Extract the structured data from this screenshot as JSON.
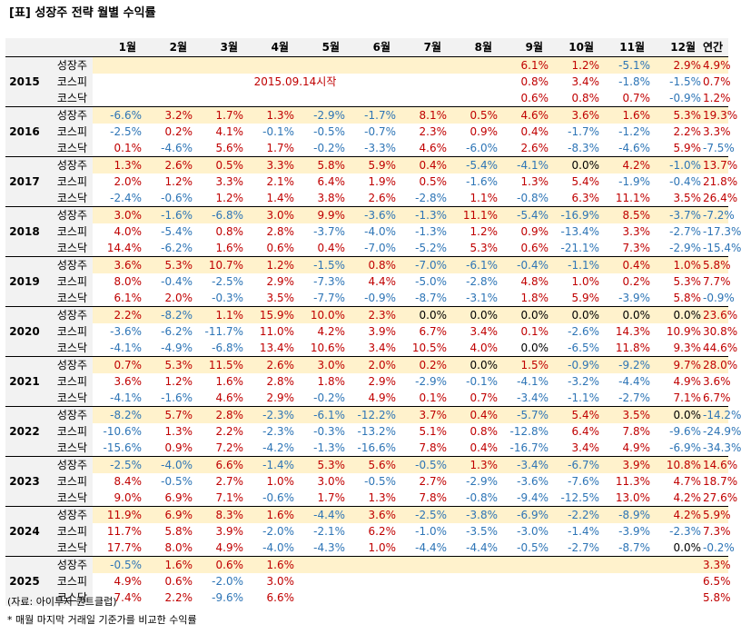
{
  "title": "[표] 성장주 전략 월별 수익률",
  "columns": [
    "1월",
    "2월",
    "3월",
    "4월",
    "5월",
    "6월",
    "7월",
    "8월",
    "9월",
    "10월",
    "11월",
    "12월",
    "연간"
  ],
  "note_2015": "2015.09.14시작",
  "colors": {
    "positive": "#c00000",
    "negative": "#2e75b6",
    "highlight": "#fff2cc",
    "header": "#f2f2f2"
  },
  "years": [
    {
      "year": "2015",
      "rows": [
        {
          "label": "성장주",
          "values": [
            "",
            "",
            "",
            "",
            "",
            "",
            "",
            "",
            "6.1%",
            "1.2%",
            "-5.1%",
            "2.9%",
            "4.9%"
          ]
        },
        {
          "label": "코스피",
          "values": [
            "",
            "",
            "",
            "",
            "",
            "",
            "",
            "",
            "0.8%",
            "3.4%",
            "-1.8%",
            "-1.5%",
            "0.7%"
          ]
        },
        {
          "label": "코스닥",
          "values": [
            "",
            "",
            "",
            "",
            "",
            "",
            "",
            "",
            "0.6%",
            "0.8%",
            "0.7%",
            "-0.9%",
            "1.2%"
          ]
        }
      ]
    },
    {
      "year": "2016",
      "rows": [
        {
          "label": "성장주",
          "values": [
            "-6.6%",
            "3.2%",
            "1.7%",
            "1.3%",
            "-2.9%",
            "-1.7%",
            "8.1%",
            "0.5%",
            "4.6%",
            "3.6%",
            "1.6%",
            "5.3%",
            "19.3%"
          ]
        },
        {
          "label": "코스피",
          "values": [
            "-2.5%",
            "0.2%",
            "4.1%",
            "-0.1%",
            "-0.5%",
            "-0.7%",
            "2.3%",
            "0.9%",
            "0.4%",
            "-1.7%",
            "-1.2%",
            "2.2%",
            "3.3%"
          ]
        },
        {
          "label": "코스닥",
          "values": [
            "0.1%",
            "-4.6%",
            "5.6%",
            "1.7%",
            "-0.2%",
            "-3.3%",
            "4.6%",
            "-6.0%",
            "2.6%",
            "-8.3%",
            "-4.6%",
            "5.9%",
            "-7.5%"
          ]
        }
      ]
    },
    {
      "year": "2017",
      "rows": [
        {
          "label": "성장주",
          "values": [
            "1.3%",
            "2.6%",
            "0.5%",
            "3.3%",
            "5.8%",
            "5.9%",
            "0.4%",
            "-5.4%",
            "-4.1%",
            "0.0%",
            "4.2%",
            "-1.0%",
            "13.7%"
          ]
        },
        {
          "label": "코스피",
          "values": [
            "2.0%",
            "1.2%",
            "3.3%",
            "2.1%",
            "6.4%",
            "1.9%",
            "0.5%",
            "-1.6%",
            "1.3%",
            "5.4%",
            "-1.9%",
            "-0.4%",
            "21.8%"
          ]
        },
        {
          "label": "코스닥",
          "values": [
            "-2.4%",
            "-0.6%",
            "1.2%",
            "1.4%",
            "3.8%",
            "2.6%",
            "-2.8%",
            "1.1%",
            "-0.8%",
            "6.3%",
            "11.1%",
            "3.5%",
            "26.4%"
          ]
        }
      ]
    },
    {
      "year": "2018",
      "rows": [
        {
          "label": "성장주",
          "values": [
            "3.0%",
            "-1.6%",
            "-6.8%",
            "3.0%",
            "9.9%",
            "-3.6%",
            "-1.3%",
            "11.1%",
            "-5.4%",
            "-16.9%",
            "8.5%",
            "-3.7%",
            "-7.2%"
          ]
        },
        {
          "label": "코스피",
          "values": [
            "4.0%",
            "-5.4%",
            "0.8%",
            "2.8%",
            "-3.7%",
            "-4.0%",
            "-1.3%",
            "1.2%",
            "0.9%",
            "-13.4%",
            "3.3%",
            "-2.7%",
            "-17.3%"
          ]
        },
        {
          "label": "코스닥",
          "values": [
            "14.4%",
            "-6.2%",
            "1.6%",
            "0.6%",
            "0.4%",
            "-7.0%",
            "-5.2%",
            "5.3%",
            "0.6%",
            "-21.1%",
            "7.3%",
            "-2.9%",
            "-15.4%"
          ]
        }
      ]
    },
    {
      "year": "2019",
      "rows": [
        {
          "label": "성장주",
          "values": [
            "3.6%",
            "5.3%",
            "10.7%",
            "1.2%",
            "-1.5%",
            "0.8%",
            "-7.0%",
            "-6.1%",
            "-0.4%",
            "-1.1%",
            "0.4%",
            "1.0%",
            "5.8%"
          ]
        },
        {
          "label": "코스피",
          "values": [
            "8.0%",
            "-0.4%",
            "-2.5%",
            "2.9%",
            "-7.3%",
            "4.4%",
            "-5.0%",
            "-2.8%",
            "4.8%",
            "1.0%",
            "0.2%",
            "5.3%",
            "7.7%"
          ]
        },
        {
          "label": "코스닥",
          "values": [
            "6.1%",
            "2.0%",
            "-0.3%",
            "3.5%",
            "-7.7%",
            "-0.9%",
            "-8.7%",
            "-3.1%",
            "1.8%",
            "5.9%",
            "-3.9%",
            "5.8%",
            "-0.9%"
          ]
        }
      ]
    },
    {
      "year": "2020",
      "rows": [
        {
          "label": "성장주",
          "values": [
            "2.2%",
            "-8.2%",
            "1.1%",
            "15.9%",
            "10.0%",
            "2.3%",
            "0.0%",
            "0.0%",
            "0.0%",
            "0.0%",
            "0.0%",
            "0.0%",
            "23.6%"
          ]
        },
        {
          "label": "코스피",
          "values": [
            "-3.6%",
            "-6.2%",
            "-11.7%",
            "11.0%",
            "4.2%",
            "3.9%",
            "6.7%",
            "3.4%",
            "0.1%",
            "-2.6%",
            "14.3%",
            "10.9%",
            "30.8%"
          ]
        },
        {
          "label": "코스닥",
          "values": [
            "-4.1%",
            "-4.9%",
            "-6.8%",
            "13.4%",
            "10.6%",
            "3.4%",
            "10.5%",
            "4.0%",
            "0.0%",
            "-6.5%",
            "11.8%",
            "9.3%",
            "44.6%"
          ]
        }
      ]
    },
    {
      "year": "2021",
      "rows": [
        {
          "label": "성장주",
          "values": [
            "0.7%",
            "5.3%",
            "11.5%",
            "2.6%",
            "3.0%",
            "2.0%",
            "0.2%",
            "0.0%",
            "1.5%",
            "-0.9%",
            "-9.2%",
            "9.7%",
            "28.0%"
          ]
        },
        {
          "label": "코스피",
          "values": [
            "3.6%",
            "1.2%",
            "1.6%",
            "2.8%",
            "1.8%",
            "2.9%",
            "-2.9%",
            "-0.1%",
            "-4.1%",
            "-3.2%",
            "-4.4%",
            "4.9%",
            "3.6%"
          ]
        },
        {
          "label": "코스닥",
          "values": [
            "-4.1%",
            "-1.6%",
            "4.6%",
            "2.9%",
            "-0.2%",
            "4.9%",
            "0.1%",
            "0.7%",
            "-3.4%",
            "-1.1%",
            "-2.7%",
            "7.1%",
            "6.7%"
          ]
        }
      ]
    },
    {
      "year": "2022",
      "rows": [
        {
          "label": "성장주",
          "values": [
            "-8.2%",
            "5.7%",
            "2.8%",
            "-2.3%",
            "-6.1%",
            "-12.2%",
            "3.7%",
            "0.4%",
            "-5.7%",
            "5.4%",
            "3.5%",
            "0.0%",
            "-14.2%"
          ]
        },
        {
          "label": "코스피",
          "values": [
            "-10.6%",
            "1.3%",
            "2.2%",
            "-2.3%",
            "-0.3%",
            "-13.2%",
            "5.1%",
            "0.8%",
            "-12.8%",
            "6.4%",
            "7.8%",
            "-9.6%",
            "-24.9%"
          ]
        },
        {
          "label": "코스닥",
          "values": [
            "-15.6%",
            "0.9%",
            "7.2%",
            "-4.2%",
            "-1.3%",
            "-16.6%",
            "7.8%",
            "0.4%",
            "-16.7%",
            "3.4%",
            "4.9%",
            "-6.9%",
            "-34.3%"
          ]
        }
      ]
    },
    {
      "year": "2023",
      "rows": [
        {
          "label": "성장주",
          "values": [
            "-2.5%",
            "-4.0%",
            "6.6%",
            "-1.4%",
            "5.3%",
            "5.6%",
            "-0.5%",
            "1.3%",
            "-3.4%",
            "-6.7%",
            "3.9%",
            "10.8%",
            "14.6%"
          ]
        },
        {
          "label": "코스피",
          "values": [
            "8.4%",
            "-0.5%",
            "2.7%",
            "1.0%",
            "3.0%",
            "-0.5%",
            "2.7%",
            "-2.9%",
            "-3.6%",
            "-7.6%",
            "11.3%",
            "4.7%",
            "18.7%"
          ]
        },
        {
          "label": "코스닥",
          "values": [
            "9.0%",
            "6.9%",
            "7.1%",
            "-0.6%",
            "1.7%",
            "1.3%",
            "7.8%",
            "-0.8%",
            "-9.4%",
            "-12.5%",
            "13.0%",
            "4.2%",
            "27.6%"
          ]
        }
      ]
    },
    {
      "year": "2024",
      "rows": [
        {
          "label": "성장주",
          "values": [
            "11.9%",
            "6.9%",
            "8.3%",
            "1.6%",
            "-4.4%",
            "3.6%",
            "-2.5%",
            "-3.8%",
            "-6.9%",
            "-2.2%",
            "-8.9%",
            "4.2%",
            "5.9%"
          ]
        },
        {
          "label": "코스피",
          "values": [
            "11.7%",
            "5.8%",
            "3.9%",
            "-2.0%",
            "-2.1%",
            "6.2%",
            "-1.0%",
            "-3.5%",
            "-3.0%",
            "-1.4%",
            "-3.9%",
            "-2.3%",
            "7.3%"
          ]
        },
        {
          "label": "코스닥",
          "values": [
            "17.7%",
            "8.0%",
            "4.9%",
            "-4.0%",
            "-4.3%",
            "1.0%",
            "-4.4%",
            "-4.4%",
            "-0.5%",
            "-2.7%",
            "-8.7%",
            "0.0%",
            "-0.2%"
          ]
        }
      ]
    },
    {
      "year": "2025",
      "rows": [
        {
          "label": "성장주",
          "values": [
            "-0.5%",
            "1.6%",
            "0.6%",
            "1.6%",
            "",
            "",
            "",
            "",
            "",
            "",
            "",
            "",
            "3.3%"
          ]
        },
        {
          "label": "코스피",
          "values": [
            "4.9%",
            "0.6%",
            "-2.0%",
            "3.0%",
            "",
            "",
            "",
            "",
            "",
            "",
            "",
            "",
            "6.5%"
          ]
        },
        {
          "label": "코스닥",
          "values": [
            "7.4%",
            "2.2%",
            "-9.6%",
            "6.6%",
            "",
            "",
            "",
            "",
            "",
            "",
            "",
            "",
            "5.8%"
          ]
        }
      ]
    }
  ],
  "source": "(자료: 아이투자 퀀트클럽)",
  "footnote": "* 매월 마지막 거래일 기준가를 비교한 수익률"
}
